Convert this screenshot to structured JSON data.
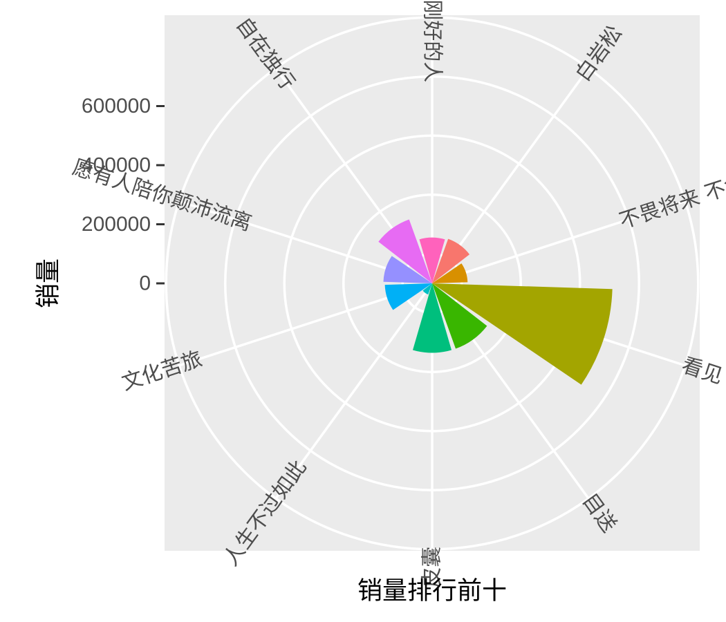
{
  "chart_data": {
    "type": "bar",
    "coord": "polar",
    "xlabel": "销量排行前十",
    "ylabel": "销量",
    "y_ticks": [
      "0",
      "200000",
      "400000",
      "600000"
    ],
    "y_tick_values": [
      0,
      200000,
      400000,
      600000
    ],
    "ylim": [
      0,
      600000
    ],
    "grid": true,
    "categories": [
      "白岩松",
      "不畏将来 不念过去",
      "看见",
      "目送",
      "皮囊",
      "人生不过如此",
      "文化苦旅",
      "愿有人陪你颠沛流离",
      "自在独行",
      "做一个刚刚好的人"
    ],
    "values": [
      160000,
      120000,
      610000,
      235000,
      235000,
      40000,
      160000,
      165000,
      230000,
      155000
    ],
    "colors": [
      "#F8766D",
      "#D89000",
      "#A3A500",
      "#39B600",
      "#00BF7D",
      "#00BFC4",
      "#00B0F6",
      "#9590FF",
      "#E76BF3",
      "#FF62BC"
    ]
  }
}
